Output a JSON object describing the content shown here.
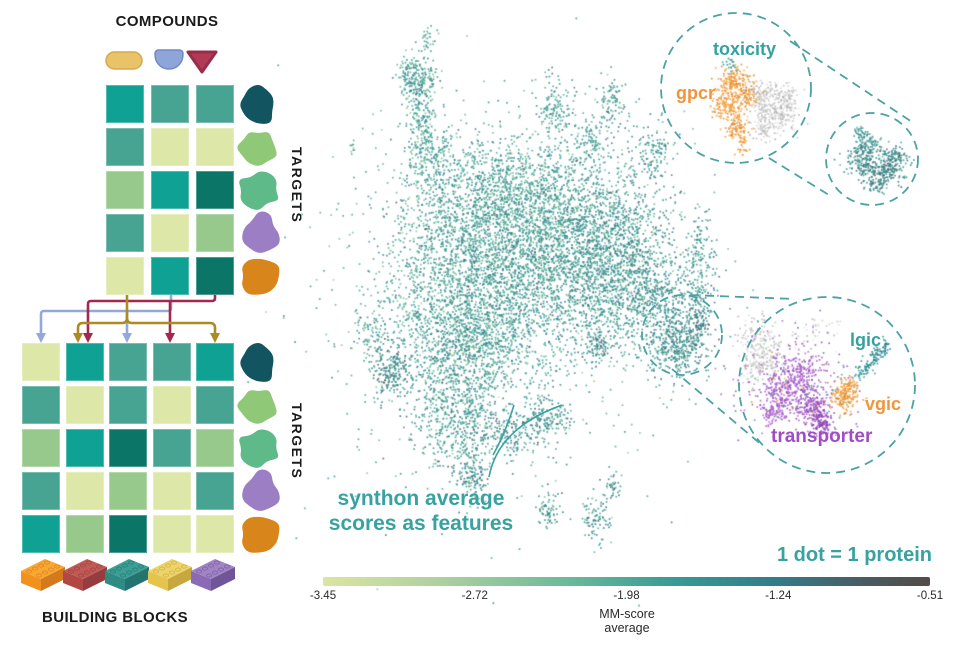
{
  "left_panel": {
    "compounds_title": "COMPOUNDS",
    "targets_label_top": "TARGETS",
    "targets_label_bottom": "TARGETS",
    "building_blocks_title": "BUILDING BLOCKS",
    "compound_shapes": {
      "capsule_fill": "#e9c368",
      "capsule_stroke": "#d5aa4e",
      "dome_fill": "#8ea5da",
      "dome_stroke": "#7289c6",
      "triangle_fill": "#b23a57",
      "triangle_stroke": "#9a2c49"
    },
    "palette": {
      "teal": "#0fa193",
      "medTeal": "#47a492",
      "lightYellow": "#dde7a7",
      "lightGreen": "#97c98c",
      "darkTeal": "#0b7568"
    },
    "matrix_top": {
      "rows": [
        [
          "teal",
          "medTeal",
          "medTeal"
        ],
        [
          "medTeal",
          "lightYellow",
          "lightYellow"
        ],
        [
          "lightGreen",
          "teal",
          "darkTeal"
        ],
        [
          "medTeal",
          "lightYellow",
          "lightGreen"
        ],
        [
          "lightYellow",
          "teal",
          "darkTeal"
        ]
      ]
    },
    "matrix_bottom": {
      "rows": [
        [
          "lightYellow",
          "teal",
          "medTeal",
          "medTeal",
          "teal"
        ],
        [
          "medTeal",
          "lightYellow",
          "medTeal",
          "lightYellow",
          "medTeal"
        ],
        [
          "lightGreen",
          "teal",
          "darkTeal",
          "medTeal",
          "lightGreen"
        ],
        [
          "medTeal",
          "lightYellow",
          "lightGreen",
          "lightYellow",
          "medTeal"
        ],
        [
          "teal",
          "lightGreen",
          "darkTeal",
          "lightYellow",
          "lightYellow"
        ]
      ]
    },
    "protein_colors": [
      "#12545f",
      "#8fc877",
      "#5fba89",
      "#9c7ec4",
      "#d8861c"
    ],
    "arrow_colors": {
      "gold": "#ad8b24",
      "blue": "#95a8da",
      "crimson": "#a3284e"
    },
    "bricks": [
      {
        "light": "#f8a733",
        "base": "#f0921c",
        "dark": "#d4791c"
      },
      {
        "light": "#c05a55",
        "base": "#b24744",
        "dark": "#953c3e"
      },
      {
        "light": "#3c9e94",
        "base": "#2e8b84",
        "dark": "#237370"
      },
      {
        "light": "#eed26a",
        "base": "#e5c44e",
        "dark": "#c7a83e"
      },
      {
        "light": "#a184c4",
        "base": "#8a6ab4",
        "dark": "#715599"
      }
    ]
  },
  "scatter": {
    "accent": "#38a2a0",
    "legend": "1 dot = 1 protein",
    "annotation_line1": "synthon average",
    "annotation_line2": "scores as features",
    "callout_stroke": "#4ba2a6",
    "labels": {
      "toxicity": {
        "text": "toxicity",
        "color": "#35a2a2"
      },
      "gpcr": {
        "text": "gpcr",
        "color": "#f0953b"
      },
      "lgic": {
        "text": "lgic",
        "color": "#35a2a2"
      },
      "vgic": {
        "text": "vgic",
        "color": "#f0953b"
      },
      "transporter": {
        "text": "transporter",
        "color": "#a04cc4"
      }
    },
    "seed": 42,
    "dot_size": 1.7,
    "dot_alpha": 0.85,
    "bias_sigma": 0.13,
    "colormap_stops": [
      [
        0,
        "#dce5a2"
      ],
      [
        0.2,
        "#accf9f"
      ],
      [
        0.4,
        "#6cba9a"
      ],
      [
        0.58,
        "#379a95"
      ],
      [
        0.75,
        "#337b8a"
      ],
      [
        0.9,
        "#4b5a5f"
      ],
      [
        1,
        "#534b48"
      ]
    ],
    "clusters": [
      [
        428,
        38,
        4,
        6,
        30,
        0.5
      ],
      [
        415,
        78,
        9,
        13,
        240,
        0.56
      ],
      [
        421,
        122,
        7,
        18,
        150,
        0.54
      ],
      [
        433,
        165,
        15,
        20,
        220,
        0.53
      ],
      [
        470,
        225,
        40,
        40,
        1100,
        0.57
      ],
      [
        520,
        272,
        50,
        46,
        1500,
        0.58
      ],
      [
        575,
        250,
        40,
        42,
        1000,
        0.6
      ],
      [
        620,
        282,
        30,
        33,
        600,
        0.62
      ],
      [
        610,
        222,
        28,
        30,
        450,
        0.6
      ],
      [
        545,
        196,
        30,
        25,
        420,
        0.55
      ],
      [
        505,
        176,
        22,
        20,
        260,
        0.53
      ],
      [
        553,
        108,
        9,
        16,
        140,
        0.58
      ],
      [
        612,
        100,
        8,
        13,
        90,
        0.58
      ],
      [
        590,
        140,
        12,
        14,
        130,
        0.57
      ],
      [
        652,
        150,
        10,
        14,
        120,
        0.6
      ],
      [
        660,
        305,
        20,
        26,
        420,
        0.63
      ],
      [
        700,
        250,
        9,
        18,
        120,
        0.6
      ],
      [
        698,
        300,
        8,
        14,
        90,
        0.62
      ],
      [
        432,
        310,
        28,
        38,
        550,
        0.56
      ],
      [
        460,
        360,
        30,
        30,
        500,
        0.58
      ],
      [
        488,
        332,
        25,
        25,
        350,
        0.57
      ],
      [
        390,
        372,
        10,
        13,
        190,
        0.7
      ],
      [
        368,
        332,
        8,
        12,
        80,
        0.55
      ],
      [
        510,
        430,
        25,
        12,
        220,
        0.66
      ],
      [
        545,
        415,
        15,
        10,
        120,
        0.64
      ],
      [
        595,
        345,
        8,
        8,
        90,
        0.68
      ],
      [
        455,
        422,
        20,
        26,
        400,
        0.6
      ],
      [
        472,
        472,
        9,
        16,
        150,
        0.62
      ],
      [
        548,
        510,
        6,
        11,
        70,
        0.6
      ],
      [
        595,
        515,
        7,
        12,
        90,
        0.6
      ],
      [
        612,
        485,
        4,
        7,
        35,
        0.6
      ],
      [
        352,
        146,
        2,
        3,
        10,
        0.5
      ],
      [
        510,
        290,
        95,
        100,
        900,
        0.5
      ],
      [
        682,
        342,
        13,
        15,
        240,
        0.66
      ],
      [
        700,
        320,
        5,
        9,
        60,
        0.72
      ],
      [
        672,
        350,
        16,
        12,
        120,
        0.6
      ],
      [
        868,
        145,
        7,
        6,
        90,
        0.62
      ],
      [
        862,
        160,
        8,
        9,
        130,
        0.64
      ],
      [
        882,
        168,
        11,
        9,
        220,
        0.7
      ],
      [
        896,
        156,
        6,
        6,
        70,
        0.68
      ],
      [
        860,
        132,
        3,
        4,
        25,
        0.6
      ],
      [
        876,
        185,
        6,
        4,
        40,
        0.66
      ],
      [
        733,
        80,
        9,
        9,
        160,
        "#f09a3a"
      ],
      [
        727,
        103,
        8,
        10,
        150,
        "#f09a3a"
      ],
      [
        737,
        125,
        6,
        8,
        90,
        "#f09a3a"
      ],
      [
        741,
        142,
        3,
        6,
        35,
        "#f09a3a"
      ],
      [
        748,
        95,
        6,
        8,
        80,
        "#f09a3a"
      ],
      [
        729,
        62,
        4,
        4,
        18,
        "#2f9995"
      ],
      [
        764,
        100,
        9,
        10,
        160,
        "#c7c7c7"
      ],
      [
        779,
        113,
        9,
        9,
        150,
        "#c7c7c7"
      ],
      [
        762,
        128,
        7,
        6,
        70,
        "#c7c7c7"
      ],
      [
        786,
        95,
        5,
        6,
        50,
        "#c7c7c7"
      ],
      [
        757,
        340,
        10,
        14,
        150,
        "#c9c9c9"
      ],
      [
        770,
        362,
        9,
        10,
        100,
        "#c9c9c9"
      ],
      [
        752,
        370,
        6,
        8,
        50,
        "#c9c9c9"
      ],
      [
        815,
        332,
        12,
        8,
        40,
        "#cccccc"
      ],
      [
        795,
        385,
        28,
        26,
        260,
        "#a65cc8"
      ],
      [
        782,
        395,
        10,
        12,
        170,
        "#a65cc8"
      ],
      [
        802,
        372,
        9,
        9,
        120,
        "#a65cc8"
      ],
      [
        812,
        408,
        7,
        9,
        150,
        "#9b4fc0"
      ],
      [
        822,
        422,
        5,
        6,
        110,
        "#9348bb"
      ],
      [
        772,
        412,
        6,
        7,
        60,
        "#a65cc8"
      ],
      [
        845,
        396,
        7,
        8,
        150,
        "#f09a3a"
      ],
      [
        850,
        385,
        4,
        5,
        40,
        "#f09a3a"
      ],
      [
        790,
        395,
        25,
        20,
        15,
        "#f09a3a"
      ],
      [
        868,
        366,
        4,
        4,
        30,
        "#2b9396"
      ],
      [
        874,
        358,
        3,
        3,
        25,
        "#27898f"
      ],
      [
        879,
        351,
        3,
        3,
        25,
        "#27898f"
      ],
      [
        884,
        345,
        2,
        3,
        20,
        "#1f7f8a"
      ],
      [
        860,
        372,
        3,
        3,
        20,
        "#2b9396"
      ],
      [
        800,
        390,
        30,
        25,
        25,
        "#3aa39b"
      ]
    ]
  },
  "colorbar": {
    "ticks": [
      "-3.45",
      "-2.72",
      "-1.98",
      "-1.24",
      "-0.51"
    ],
    "label_line1": "MM-score",
    "label_line2": "average"
  },
  "chart_data": {
    "type": "scatter",
    "description": "UMAP-style protein embedding built from synthon average scores; one dot per protein, colored by MM-score average",
    "legend": "1 dot = 1 protein",
    "colorbar": {
      "label": "MM-score average",
      "ticks": [
        -3.45,
        -2.72,
        -1.98,
        -1.24,
        -0.51
      ]
    },
    "callout_clusters": [
      "toxicity",
      "gpcr",
      "lgic",
      "vgic",
      "transporter"
    ]
  }
}
